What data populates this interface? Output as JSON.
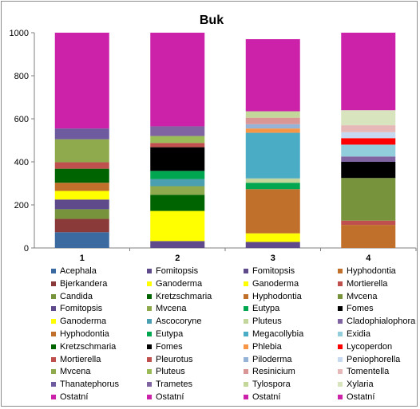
{
  "chart_data": {
    "type": "bar",
    "stacked": true,
    "title": "Buk",
    "xlabel": "",
    "ylabel": "",
    "ylim": [
      0,
      1000
    ],
    "yticks": [
      0,
      200,
      400,
      600,
      800,
      1000
    ],
    "grid": false,
    "legend_position": "bottom",
    "categories": [
      "1",
      "2",
      "3",
      "4"
    ],
    "bars": [
      {
        "category": "1",
        "segments": [
          {
            "name": "Acephala",
            "value": 73,
            "color": "#3b6aa0"
          },
          {
            "name": "Bjerkandera",
            "value": 62,
            "color": "#8b3a3a"
          },
          {
            "name": "Candida",
            "value": 45,
            "color": "#77933c"
          },
          {
            "name": "Fomitopsis",
            "value": 45,
            "color": "#5f4b8b"
          },
          {
            "name": "Ganoderma",
            "value": 40,
            "color": "#ffff00"
          },
          {
            "name": "Hyphodontia",
            "value": 38,
            "color": "#c0702a"
          },
          {
            "name": "Kretzschmaria",
            "value": 65,
            "color": "#006400"
          },
          {
            "name": "Mortierella",
            "value": 30,
            "color": "#c0504d"
          },
          {
            "name": "Mvcena",
            "value": 107,
            "color": "#8faa4c"
          },
          {
            "name": "Thanatephorus",
            "value": 50,
            "color": "#6e5a9e"
          },
          {
            "name": "Ostatní",
            "value": 445,
            "color": "#cc22aa"
          }
        ]
      },
      {
        "category": "2",
        "segments": [
          {
            "name": "Fomitopsis",
            "value": 32,
            "color": "#5f4b8b"
          },
          {
            "name": "Ganoderma",
            "value": 140,
            "color": "#ffff00"
          },
          {
            "name": "Kretzschmaria",
            "value": 75,
            "color": "#006400"
          },
          {
            "name": "Mvcena",
            "value": 40,
            "color": "#8faa4c"
          },
          {
            "name": "Ascocoryne",
            "value": 33,
            "color": "#4a9fb0"
          },
          {
            "name": "Eutypa",
            "value": 38,
            "color": "#00a650"
          },
          {
            "name": "Fomes",
            "value": 110,
            "color": "#000000"
          },
          {
            "name": "Pleurotus",
            "value": 20,
            "color": "#c0504d"
          },
          {
            "name": "Pluteus",
            "value": 32,
            "color": "#9bbb59"
          },
          {
            "name": "Trametes",
            "value": 45,
            "color": "#8064a2"
          },
          {
            "name": "Ostatní",
            "value": 435,
            "color": "#cc22aa"
          }
        ]
      },
      {
        "category": "3",
        "segments": [
          {
            "name": "Fomitopsis",
            "value": 28,
            "color": "#5f4b8b"
          },
          {
            "name": "Ganoderma",
            "value": 40,
            "color": "#ffff00"
          },
          {
            "name": "Hyphodontia",
            "value": 205,
            "color": "#c0702a"
          },
          {
            "name": "Eutypa",
            "value": 30,
            "color": "#00a650"
          },
          {
            "name": "Pluteus",
            "value": 20,
            "color": "#c3d69b"
          },
          {
            "name": "Megacollybia",
            "value": 212,
            "color": "#4bacc6"
          },
          {
            "name": "Phlebia",
            "value": 20,
            "color": "#f79646"
          },
          {
            "name": "Piloderma",
            "value": 20,
            "color": "#95b3d7"
          },
          {
            "name": "Resinicium",
            "value": 30,
            "color": "#d99694"
          },
          {
            "name": "Tylospora",
            "value": 30,
            "color": "#c4d79b"
          },
          {
            "name": "Ostatní",
            "value": 335,
            "color": "#cc22aa"
          }
        ]
      },
      {
        "category": "4",
        "segments": [
          {
            "name": "Hyphodontia",
            "value": 107,
            "color": "#c0702a"
          },
          {
            "name": "Mortierella",
            "value": 20,
            "color": "#c0504d"
          },
          {
            "name": "Mvcena",
            "value": 198,
            "color": "#77933c"
          },
          {
            "name": "Fomes",
            "value": 75,
            "color": "#000000"
          },
          {
            "name": "Cladophialophora",
            "value": 25,
            "color": "#8064a2"
          },
          {
            "name": "Exidia",
            "value": 55,
            "color": "#92cddc"
          },
          {
            "name": "Lycoperdon",
            "value": 30,
            "color": "#ff0000"
          },
          {
            "name": "Peniophorella",
            "value": 28,
            "color": "#c6d9f1"
          },
          {
            "name": "Tomentella",
            "value": 32,
            "color": "#e6b9b8"
          },
          {
            "name": "Xylaria",
            "value": 70,
            "color": "#d7e4bd"
          },
          {
            "name": "Ostatní",
            "value": 360,
            "color": "#cc22aa"
          }
        ]
      }
    ]
  },
  "legend": [
    [
      {
        "label": "Acephala",
        "color": "#3b6aa0"
      },
      {
        "label": "Bjerkandera",
        "color": "#8b3a3a"
      },
      {
        "label": "Candida",
        "color": "#77933c"
      },
      {
        "label": "Fomitopsis",
        "color": "#5f4b8b"
      },
      {
        "label": "Ganoderma",
        "color": "#ffff00"
      },
      {
        "label": "Hyphodontia",
        "color": "#c0702a"
      },
      {
        "label": "Kretzschmaria",
        "color": "#006400"
      },
      {
        "label": "Mortierella",
        "color": "#c0504d"
      },
      {
        "label": "Mvcena",
        "color": "#8faa4c"
      },
      {
        "label": "Thanatephorus",
        "color": "#6e5a9e"
      },
      {
        "label": "Ostatní",
        "color": "#cc22aa"
      }
    ],
    [
      {
        "label": "Fomitopsis",
        "color": "#5f4b8b"
      },
      {
        "label": "Ganoderma",
        "color": "#ffff00"
      },
      {
        "label": "Kretzschmaria",
        "color": "#006400"
      },
      {
        "label": "Mvcena",
        "color": "#8faa4c"
      },
      {
        "label": "Ascocoryne",
        "color": "#4a9fb0"
      },
      {
        "label": "Eutypa",
        "color": "#00a650"
      },
      {
        "label": "Fomes",
        "color": "#000000"
      },
      {
        "label": "Pleurotus",
        "color": "#c0504d"
      },
      {
        "label": "Pluteus",
        "color": "#9bbb59"
      },
      {
        "label": "Trametes",
        "color": "#8064a2"
      },
      {
        "label": "Ostatní",
        "color": "#cc22aa"
      }
    ],
    [
      {
        "label": "Fomitopsis",
        "color": "#5f4b8b"
      },
      {
        "label": "Ganoderma",
        "color": "#ffff00"
      },
      {
        "label": "Hyphodontia",
        "color": "#c0702a"
      },
      {
        "label": "Eutypa",
        "color": "#00a650"
      },
      {
        "label": "Pluteus",
        "color": "#c3d69b"
      },
      {
        "label": "Megacollybia",
        "color": "#4bacc6"
      },
      {
        "label": "Phlebia",
        "color": "#f79646"
      },
      {
        "label": "Piloderma",
        "color": "#95b3d7"
      },
      {
        "label": "Resinicium",
        "color": "#d99694"
      },
      {
        "label": "Tylospora",
        "color": "#c4d79b"
      },
      {
        "label": "Ostatní",
        "color": "#cc22aa"
      }
    ],
    [
      {
        "label": "Hyphodontia",
        "color": "#c0702a"
      },
      {
        "label": "Mortierella",
        "color": "#c0504d"
      },
      {
        "label": "Mvcena",
        "color": "#77933c"
      },
      {
        "label": "Fomes",
        "color": "#000000"
      },
      {
        "label": "Cladophialophora",
        "color": "#8064a2"
      },
      {
        "label": "Exidia",
        "color": "#92cddc"
      },
      {
        "label": "Lycoperdon",
        "color": "#ff0000"
      },
      {
        "label": "Peniophorella",
        "color": "#c6d9f1"
      },
      {
        "label": "Tomentella",
        "color": "#e6b9b8"
      },
      {
        "label": "Xylaria",
        "color": "#d7e4bd"
      },
      {
        "label": "Ostatní",
        "color": "#cc22aa"
      }
    ]
  ]
}
